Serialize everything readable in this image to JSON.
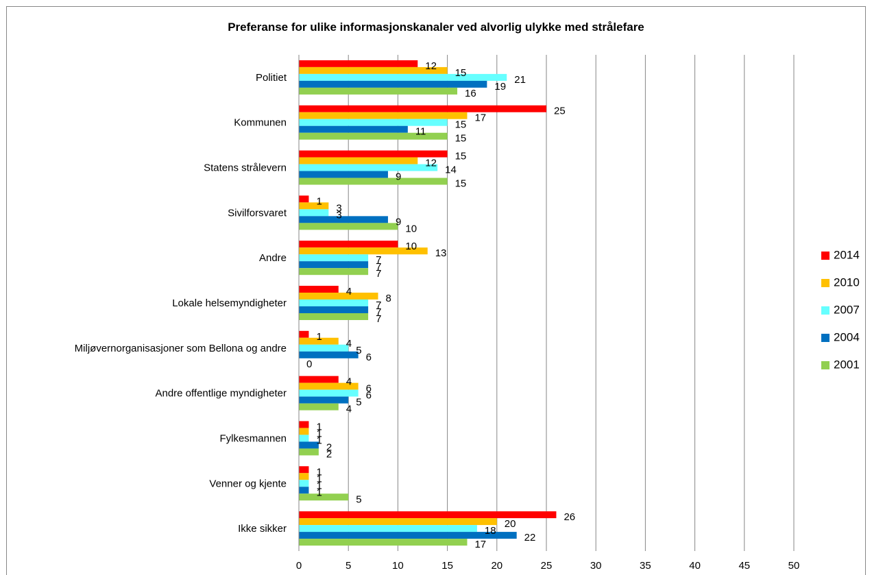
{
  "chart_data": {
    "type": "bar",
    "orientation": "horizontal",
    "title": "Preferanse for ulike informasjonskanaler ved alvorlig ulykke med strålefare",
    "categories": [
      "Politiet",
      "Kommunen",
      "Statens strålevern",
      "Sivilforsvaret",
      "Andre",
      "Lokale helsemyndigheter",
      "Miljøvernorganisasjoner som Bellona og andre",
      "Andre offentlige myndigheter",
      "Fylkesmannen",
      "Venner og kjente",
      "Ikke sikker"
    ],
    "series": [
      {
        "name": "2014",
        "color": "#ff0000",
        "values": [
          12,
          25,
          15,
          1,
          10,
          4,
          1,
          4,
          1,
          1,
          26
        ]
      },
      {
        "name": "2010",
        "color": "#ffc000",
        "values": [
          15,
          17,
          12,
          3,
          13,
          8,
          4,
          6,
          1,
          1,
          20
        ]
      },
      {
        "name": "2007",
        "color": "#66ffff",
        "values": [
          21,
          15,
          14,
          3,
          7,
          7,
          5,
          6,
          1,
          1,
          18
        ]
      },
      {
        "name": "2004",
        "color": "#0070c0",
        "values": [
          19,
          11,
          9,
          9,
          7,
          7,
          6,
          5,
          2,
          1,
          22
        ]
      },
      {
        "name": "2001",
        "color": "#92d050",
        "values": [
          16,
          15,
          15,
          10,
          7,
          7,
          0,
          4,
          2,
          5,
          17
        ]
      }
    ],
    "xlim": [
      0,
      50
    ],
    "xticks": [
      0,
      5,
      10,
      15,
      20,
      25,
      30,
      35,
      40,
      45,
      50
    ],
    "grid": true,
    "legend_position": "right"
  }
}
